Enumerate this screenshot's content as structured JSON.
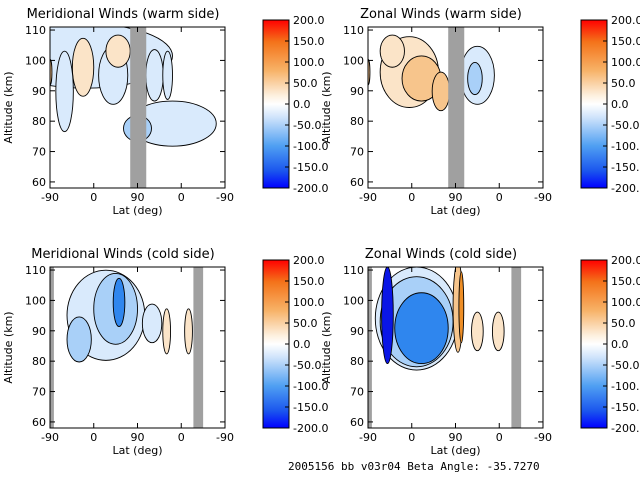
{
  "footer": "2005156 bb v03r04   Beta Angle: -35.7270",
  "colors": {
    "gap": "#a0a0a0",
    "neg_strong": "#0a16e6",
    "neg_mid": "#2f86ee",
    "neg_weak": "#a9d0f8",
    "neg_faint": "#d9eafc",
    "pos_faint": "#fbe4c8",
    "pos_weak": "#f7c58c",
    "pos_mid": "#ee8e26",
    "pos_strong": "#e02010"
  },
  "chart_data": [
    {
      "type": "heatmap",
      "title": "Meridional Winds (warm side)",
      "xlabel": "Lat (deg)",
      "ylabel": "Altitude (km)",
      "x_ticks": [
        "-90",
        "0",
        "90",
        "0",
        "-90"
      ],
      "y_ticks": [
        60,
        70,
        80,
        90,
        100,
        110
      ],
      "ylim": [
        58,
        111
      ],
      "colorbar": {
        "ticks": [
          "200.0",
          "150.0",
          "100.0",
          "50.0",
          "0.0",
          "-50.0",
          "-100.0",
          "-150.0",
          "-200.0"
        ],
        "range": [
          -200,
          200
        ]
      },
      "gaps": [
        [
          75,
          108
        ]
      ],
      "features": [
        {
          "x": 0.7,
          "y": 0.4,
          "rx": 0.25,
          "ry": 0.14,
          "level": -1
        },
        {
          "x": 0.5,
          "y": 0.37,
          "rx": 0.08,
          "ry": 0.08,
          "level": -2
        },
        {
          "x": 0.2,
          "y": 0.82,
          "rx": 0.5,
          "ry": 0.2,
          "level": -1
        },
        {
          "x": -22,
          "y": 0.75,
          "rx": 22,
          "ry": 0.18,
          "level": 1
        },
        {
          "x": 40,
          "y": 0.7,
          "rx": 30,
          "ry": 0.18,
          "level": -1
        },
        {
          "x": 50,
          "y": 0.85,
          "rx": 25,
          "ry": 0.1,
          "level": 1
        },
        {
          "x": -60,
          "y": 0.6,
          "rx": 18,
          "ry": 0.25,
          "level": -1
        },
        {
          "x": 125,
          "y": 0.7,
          "rx": 18,
          "ry": 0.16,
          "level": -1
        },
        {
          "x": 105,
          "y": 0.6,
          "rx": 3,
          "ry": 0.1,
          "level": -2
        },
        {
          "x": 152,
          "y": 0.7,
          "rx": 10,
          "ry": 0.15,
          "level": -1
        },
        {
          "x": -90,
          "y": 0.72,
          "rx": 4,
          "ry": 0.08,
          "level": 2
        }
      ]
    },
    {
      "type": "heatmap",
      "title": "Zonal Winds (warm side)",
      "xlabel": "Lat (deg)",
      "ylabel": "Altitude (km)",
      "x_ticks": [
        "-90",
        "0",
        "90",
        "0",
        "-90"
      ],
      "y_ticks": [
        60,
        70,
        80,
        90,
        100,
        110
      ],
      "ylim": [
        58,
        111
      ],
      "colorbar": {
        "ticks": [
          "200.0",
          "150.0",
          "100.0",
          "50.0",
          "0.0",
          "-50.0",
          "-100.0",
          "-150.0",
          "-200.0"
        ],
        "range": [
          -200,
          200
        ]
      },
      "gaps": [
        [
          75,
          108
        ]
      ],
      "features": [
        {
          "x": -5,
          "y": 0.72,
          "rx": 60,
          "ry": 0.22,
          "level": 1
        },
        {
          "x": 20,
          "y": 0.68,
          "rx": 40,
          "ry": 0.14,
          "level": 2
        },
        {
          "x": -40,
          "y": 0.85,
          "rx": 25,
          "ry": 0.1,
          "level": 1
        },
        {
          "x": 60,
          "y": 0.6,
          "rx": 18,
          "ry": 0.12,
          "level": 2
        },
        {
          "x": 135,
          "y": 0.7,
          "rx": 35,
          "ry": 0.18,
          "level": -1
        },
        {
          "x": 130,
          "y": 0.68,
          "rx": 15,
          "ry": 0.1,
          "level": -2
        },
        {
          "x": -90,
          "y": 0.72,
          "rx": 4,
          "ry": 0.08,
          "level": 2
        }
      ]
    },
    {
      "type": "heatmap",
      "title": "Meridional Winds (cold side)",
      "xlabel": "Lat (deg)",
      "ylabel": "Altitude (km)",
      "x_ticks": [
        "-90",
        "0",
        "90",
        "0",
        "-90"
      ],
      "y_ticks": [
        60,
        70,
        80,
        90,
        100,
        110
      ],
      "ylim": [
        58,
        111
      ],
      "colorbar": {
        "ticks": [
          "200.0",
          "150.0",
          "100.0",
          "50.0",
          "0.0",
          "-50.0",
          "-100.0",
          "-150.0",
          "-200.0"
        ],
        "range": [
          -200,
          200
        ]
      },
      "gaps": [
        [
          -100,
          -82
        ],
        [
          205,
          225
        ]
      ],
      "features": [
        {
          "x": 25,
          "y": 0.7,
          "rx": 80,
          "ry": 0.28,
          "level": -1
        },
        {
          "x": 45,
          "y": 0.74,
          "rx": 45,
          "ry": 0.22,
          "level": -2
        },
        {
          "x": 52,
          "y": 0.78,
          "rx": 12,
          "ry": 0.15,
          "level": -3
        },
        {
          "x": -30,
          "y": 0.55,
          "rx": 25,
          "ry": 0.14,
          "level": -2
        },
        {
          "x": 120,
          "y": 0.65,
          "rx": 20,
          "ry": 0.12,
          "level": -1
        },
        {
          "x": 150,
          "y": 0.6,
          "rx": 8,
          "ry": 0.14,
          "level": 1
        },
        {
          "x": 195,
          "y": 0.6,
          "rx": 8,
          "ry": 0.14,
          "level": 1
        }
      ]
    },
    {
      "type": "heatmap",
      "title": "Zonal Winds (cold side)",
      "xlabel": "Lat (deg)",
      "ylabel": "Altitude (km)",
      "x_ticks": [
        "-90",
        "0",
        "90",
        "0",
        "-90"
      ],
      "y_ticks": [
        60,
        70,
        80,
        90,
        100,
        110
      ],
      "ylim": [
        58,
        111
      ],
      "colorbar": {
        "ticks": [
          "200.0",
          "150.0",
          "100.0",
          "50.0",
          "0.0",
          "-50.0",
          "-100.0",
          "-150.0",
          "-200.0"
        ],
        "range": [
          -200,
          200
        ]
      },
      "gaps": [
        [
          -100,
          -82
        ],
        [
          205,
          225
        ]
      ],
      "features": [
        {
          "x": 10,
          "y": 0.68,
          "rx": 85,
          "ry": 0.32,
          "level": -1
        },
        {
          "x": 10,
          "y": 0.66,
          "rx": 75,
          "ry": 0.28,
          "level": -2
        },
        {
          "x": 20,
          "y": 0.62,
          "rx": 55,
          "ry": 0.22,
          "level": -3
        },
        {
          "x": -50,
          "y": 0.7,
          "rx": 12,
          "ry": 0.3,
          "level": -4
        },
        {
          "x": 95,
          "y": 0.75,
          "rx": 10,
          "ry": 0.28,
          "level": 2
        },
        {
          "x": 102,
          "y": 0.75,
          "rx": 5,
          "ry": 0.22,
          "level": 3
        },
        {
          "x": 135,
          "y": 0.6,
          "rx": 12,
          "ry": 0.12,
          "level": 1
        },
        {
          "x": 178,
          "y": 0.6,
          "rx": 12,
          "ry": 0.12,
          "level": 1
        }
      ]
    }
  ]
}
